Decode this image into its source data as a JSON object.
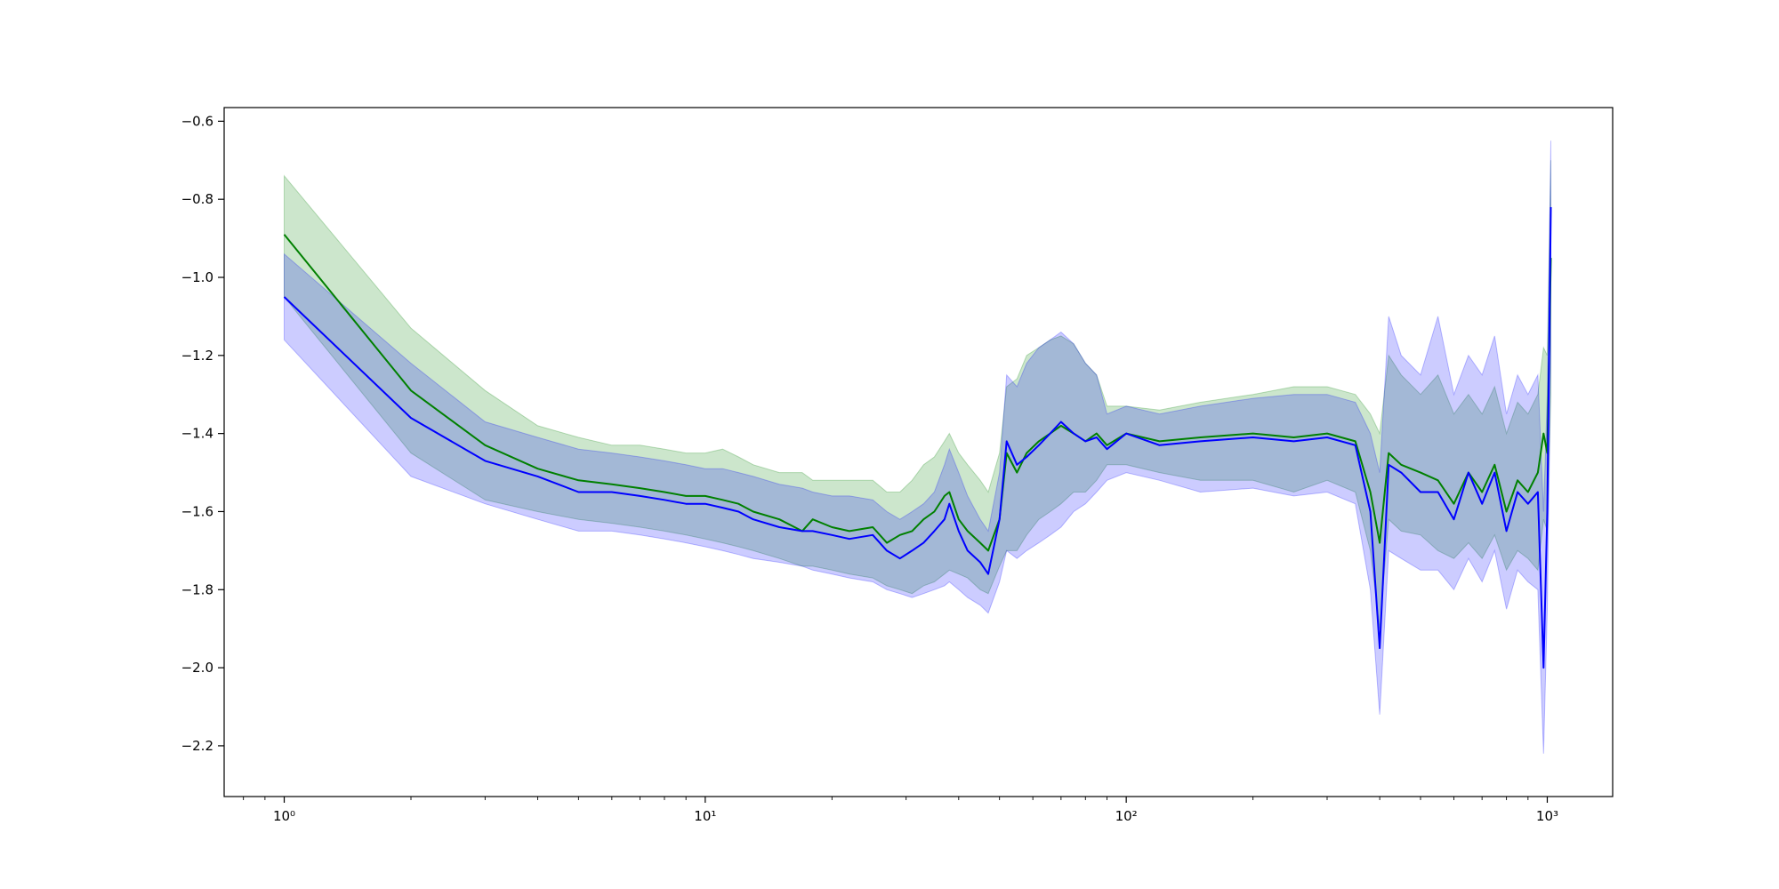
{
  "chart_data": {
    "type": "line",
    "xscale": "log",
    "xlim": [
      0.72,
      1430
    ],
    "ylim": [
      -2.33,
      -0.565
    ],
    "grid": false,
    "legend": "none",
    "title": "",
    "xlabel": "",
    "ylabel": "",
    "x_ticks": [
      {
        "value": 1,
        "label": "10⁰"
      },
      {
        "value": 10,
        "label": "10¹"
      },
      {
        "value": 100,
        "label": "10²"
      },
      {
        "value": 1000,
        "label": "10³"
      }
    ],
    "y_ticks": [
      {
        "value": -0.6,
        "label": "−0.6"
      },
      {
        "value": -0.8,
        "label": "−0.8"
      },
      {
        "value": -1.0,
        "label": "−1.0"
      },
      {
        "value": -1.2,
        "label": "−1.2"
      },
      {
        "value": -1.4,
        "label": "−1.4"
      },
      {
        "value": -1.6,
        "label": "−1.6"
      },
      {
        "value": -1.8,
        "label": "−1.8"
      },
      {
        "value": -2.0,
        "label": "−2.0"
      },
      {
        "value": -2.2,
        "label": "−2.2"
      }
    ],
    "series": [
      {
        "color": "#008000",
        "band_color": "#008000",
        "band_opacity": 0.2,
        "x": [
          1,
          2,
          3,
          4,
          5,
          6,
          7,
          8,
          9,
          10,
          11,
          12,
          13,
          15,
          17,
          18,
          20,
          22,
          25,
          27,
          29,
          31,
          33,
          35,
          37,
          38,
          40,
          42,
          45,
          47,
          50,
          52,
          55,
          58,
          62,
          66,
          70,
          75,
          80,
          85,
          90,
          100,
          120,
          150,
          200,
          250,
          300,
          350,
          380,
          400,
          420,
          450,
          500,
          550,
          600,
          650,
          700,
          750,
          800,
          850,
          900,
          950,
          980,
          1000,
          1020
        ],
        "y": [
          -0.89,
          -1.29,
          -1.43,
          -1.49,
          -1.52,
          -1.53,
          -1.54,
          -1.55,
          -1.56,
          -1.56,
          -1.57,
          -1.58,
          -1.6,
          -1.62,
          -1.65,
          -1.62,
          -1.64,
          -1.65,
          -1.64,
          -1.68,
          -1.66,
          -1.65,
          -1.62,
          -1.6,
          -1.56,
          -1.55,
          -1.62,
          -1.65,
          -1.68,
          -1.7,
          -1.62,
          -1.45,
          -1.5,
          -1.45,
          -1.42,
          -1.4,
          -1.38,
          -1.4,
          -1.42,
          -1.4,
          -1.43,
          -1.4,
          -1.42,
          -1.41,
          -1.4,
          -1.41,
          -1.4,
          -1.42,
          -1.55,
          -1.68,
          -1.45,
          -1.48,
          -1.5,
          -1.52,
          -1.58,
          -1.5,
          -1.55,
          -1.48,
          -1.6,
          -1.52,
          -1.55,
          -1.5,
          -1.4,
          -1.45,
          -0.95
        ],
        "lower": [
          -1.05,
          -1.45,
          -1.57,
          -1.6,
          -1.62,
          -1.63,
          -1.64,
          -1.65,
          -1.66,
          -1.67,
          -1.68,
          -1.69,
          -1.7,
          -1.72,
          -1.74,
          -1.74,
          -1.75,
          -1.76,
          -1.77,
          -1.79,
          -1.8,
          -1.81,
          -1.79,
          -1.78,
          -1.76,
          -1.75,
          -1.76,
          -1.77,
          -1.8,
          -1.81,
          -1.74,
          -1.7,
          -1.7,
          -1.66,
          -1.62,
          -1.6,
          -1.58,
          -1.55,
          -1.55,
          -1.52,
          -1.48,
          -1.48,
          -1.5,
          -1.52,
          -1.52,
          -1.55,
          -1.52,
          -1.55,
          -1.7,
          -1.9,
          -1.62,
          -1.65,
          -1.66,
          -1.7,
          -1.72,
          -1.68,
          -1.72,
          -1.66,
          -1.75,
          -1.7,
          -1.72,
          -1.75,
          -1.62,
          -1.65,
          -1.3
        ],
        "upper": [
          -0.74,
          -1.13,
          -1.29,
          -1.38,
          -1.41,
          -1.43,
          -1.43,
          -1.44,
          -1.45,
          -1.45,
          -1.44,
          -1.46,
          -1.48,
          -1.5,
          -1.5,
          -1.52,
          -1.52,
          -1.52,
          -1.52,
          -1.55,
          -1.55,
          -1.52,
          -1.48,
          -1.46,
          -1.42,
          -1.4,
          -1.45,
          -1.48,
          -1.52,
          -1.55,
          -1.45,
          -1.28,
          -1.26,
          -1.2,
          -1.18,
          -1.16,
          -1.15,
          -1.17,
          -1.22,
          -1.25,
          -1.33,
          -1.33,
          -1.34,
          -1.32,
          -1.3,
          -1.28,
          -1.28,
          -1.3,
          -1.35,
          -1.4,
          -1.2,
          -1.25,
          -1.3,
          -1.25,
          -1.35,
          -1.3,
          -1.35,
          -1.28,
          -1.4,
          -1.32,
          -1.35,
          -1.3,
          -1.18,
          -1.2,
          -0.7
        ]
      },
      {
        "color": "#0000ff",
        "band_color": "#0000ff",
        "band_opacity": 0.2,
        "x": [
          1,
          2,
          3,
          4,
          5,
          6,
          7,
          8,
          9,
          10,
          11,
          12,
          13,
          15,
          17,
          18,
          20,
          22,
          25,
          27,
          29,
          31,
          33,
          35,
          37,
          38,
          40,
          42,
          45,
          47,
          50,
          52,
          55,
          58,
          62,
          66,
          70,
          75,
          80,
          85,
          90,
          100,
          120,
          150,
          200,
          250,
          300,
          350,
          380,
          400,
          420,
          450,
          500,
          550,
          600,
          650,
          700,
          750,
          800,
          850,
          900,
          950,
          980,
          1000,
          1020
        ],
        "y": [
          -1.05,
          -1.36,
          -1.47,
          -1.51,
          -1.55,
          -1.55,
          -1.56,
          -1.57,
          -1.58,
          -1.58,
          -1.59,
          -1.6,
          -1.62,
          -1.64,
          -1.65,
          -1.65,
          -1.66,
          -1.67,
          -1.66,
          -1.7,
          -1.72,
          -1.7,
          -1.68,
          -1.65,
          -1.62,
          -1.58,
          -1.65,
          -1.7,
          -1.73,
          -1.76,
          -1.62,
          -1.42,
          -1.48,
          -1.46,
          -1.43,
          -1.4,
          -1.37,
          -1.4,
          -1.42,
          -1.41,
          -1.44,
          -1.4,
          -1.43,
          -1.42,
          -1.41,
          -1.42,
          -1.41,
          -1.43,
          -1.6,
          -1.95,
          -1.48,
          -1.5,
          -1.55,
          -1.55,
          -1.62,
          -1.5,
          -1.58,
          -1.5,
          -1.65,
          -1.55,
          -1.58,
          -1.55,
          -2.0,
          -1.6,
          -0.82
        ],
        "lower": [
          -1.16,
          -1.51,
          -1.58,
          -1.62,
          -1.65,
          -1.65,
          -1.66,
          -1.67,
          -1.68,
          -1.69,
          -1.7,
          -1.71,
          -1.72,
          -1.73,
          -1.74,
          -1.75,
          -1.76,
          -1.77,
          -1.78,
          -1.8,
          -1.81,
          -1.82,
          -1.81,
          -1.8,
          -1.79,
          -1.78,
          -1.8,
          -1.82,
          -1.84,
          -1.86,
          -1.78,
          -1.7,
          -1.72,
          -1.7,
          -1.68,
          -1.66,
          -1.64,
          -1.6,
          -1.58,
          -1.55,
          -1.52,
          -1.5,
          -1.52,
          -1.55,
          -1.54,
          -1.56,
          -1.55,
          -1.58,
          -1.8,
          -2.12,
          -1.7,
          -1.72,
          -1.75,
          -1.75,
          -1.8,
          -1.72,
          -1.78,
          -1.7,
          -1.85,
          -1.75,
          -1.78,
          -1.8,
          -2.22,
          -1.85,
          -1.2
        ],
        "upper": [
          -0.94,
          -1.22,
          -1.37,
          -1.41,
          -1.44,
          -1.45,
          -1.46,
          -1.47,
          -1.48,
          -1.49,
          -1.49,
          -1.5,
          -1.51,
          -1.53,
          -1.54,
          -1.55,
          -1.56,
          -1.56,
          -1.57,
          -1.6,
          -1.62,
          -1.6,
          -1.58,
          -1.55,
          -1.48,
          -1.44,
          -1.5,
          -1.56,
          -1.62,
          -1.65,
          -1.5,
          -1.25,
          -1.28,
          -1.22,
          -1.18,
          -1.16,
          -1.14,
          -1.17,
          -1.22,
          -1.25,
          -1.35,
          -1.33,
          -1.35,
          -1.33,
          -1.31,
          -1.3,
          -1.3,
          -1.32,
          -1.4,
          -1.5,
          -1.1,
          -1.2,
          -1.25,
          -1.1,
          -1.3,
          -1.2,
          -1.25,
          -1.15,
          -1.35,
          -1.25,
          -1.3,
          -1.25,
          -1.6,
          -1.3,
          -0.65
        ]
      }
    ]
  }
}
